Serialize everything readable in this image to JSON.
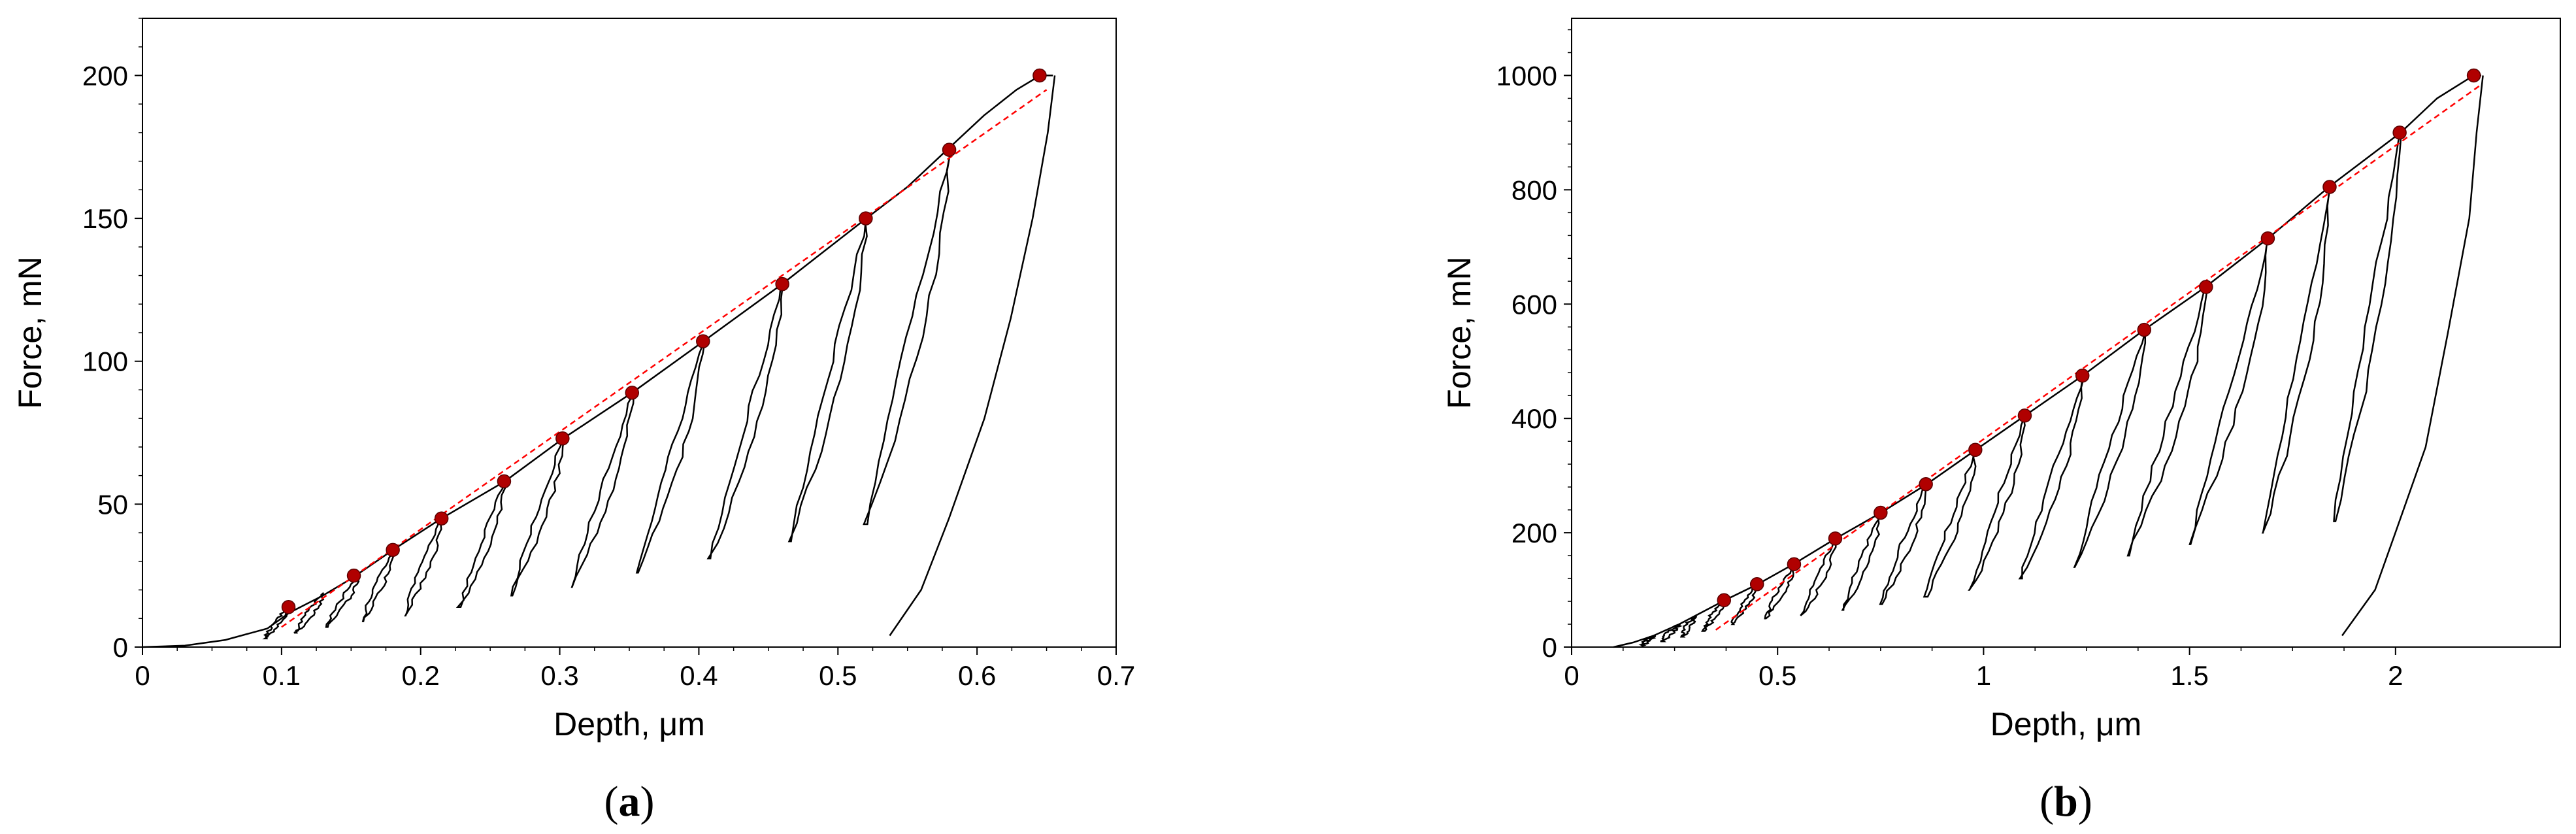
{
  "chart_data": [
    {
      "type": "line",
      "panel_label": "a",
      "xlabel": "Depth, μm",
      "ylabel": "Force, mN",
      "xlim": [
        0,
        0.7
      ],
      "ylim": [
        0,
        220
      ],
      "xticks": [
        0,
        0.1,
        0.2,
        0.3,
        0.4,
        0.5,
        0.6,
        0.7
      ],
      "xtick_labels": [
        "0",
        "0.1",
        "0.2",
        "0.3",
        "0.4",
        "0.5",
        "0.6",
        "0.7"
      ],
      "yticks": [
        0,
        50,
        100,
        150,
        200
      ],
      "ytick_labels": [
        "0",
        "50",
        "100",
        "150",
        "200"
      ],
      "grid": false,
      "colors": {
        "curve": "#000000",
        "points": "#b00000",
        "fit": "#ff0000"
      },
      "loading_curve": [
        [
          0.0,
          0
        ],
        [
          0.03,
          0.5
        ],
        [
          0.06,
          2.5
        ],
        [
          0.09,
          6.5
        ],
        [
          0.105,
          12
        ],
        [
          0.13,
          18
        ],
        [
          0.15,
          24
        ],
        [
          0.18,
          34
        ],
        [
          0.215,
          45
        ],
        [
          0.26,
          58
        ],
        [
          0.302,
          73
        ],
        [
          0.352,
          89
        ],
        [
          0.403,
          107
        ],
        [
          0.46,
          127
        ],
        [
          0.52,
          150
        ],
        [
          0.55,
          161
        ],
        [
          0.578,
          174
        ],
        [
          0.605,
          186
        ],
        [
          0.628,
          195
        ],
        [
          0.645,
          200
        ],
        [
          0.655,
          200
        ]
      ],
      "cycles": [
        {
          "peak": [
            0.105,
            14
          ],
          "unload_min": [
            0.088,
            3
          ]
        },
        {
          "peak": [
            0.13,
            19
          ],
          "unload_min": [
            0.11,
            5
          ]
        },
        {
          "peak": [
            0.155,
            25
          ],
          "unload_min": [
            0.132,
            7
          ]
        },
        {
          "peak": [
            0.18,
            34
          ],
          "unload_min": [
            0.158,
            9
          ]
        },
        {
          "peak": [
            0.215,
            45
          ],
          "unload_min": [
            0.188,
            11
          ]
        },
        {
          "peak": [
            0.26,
            58
          ],
          "unload_min": [
            0.228,
            14
          ]
        },
        {
          "peak": [
            0.302,
            73
          ],
          "unload_min": [
            0.265,
            18
          ]
        },
        {
          "peak": [
            0.352,
            89
          ],
          "unload_min": [
            0.308,
            21
          ]
        },
        {
          "peak": [
            0.403,
            107
          ],
          "unload_min": [
            0.355,
            26
          ]
        },
        {
          "peak": [
            0.46,
            127
          ],
          "unload_min": [
            0.408,
            31
          ]
        },
        {
          "peak": [
            0.52,
            150
          ],
          "unload_min": [
            0.465,
            37
          ]
        },
        {
          "peak": [
            0.58,
            174
          ],
          "unload_min": [
            0.52,
            43
          ]
        }
      ],
      "final_unload": [
        [
          0.655,
          200
        ],
        [
          0.65,
          180
        ],
        [
          0.64,
          150
        ],
        [
          0.625,
          115
        ],
        [
          0.605,
          80
        ],
        [
          0.58,
          45
        ],
        [
          0.56,
          20
        ],
        [
          0.537,
          4
        ]
      ],
      "red_points": [
        [
          0.105,
          14
        ],
        [
          0.152,
          25
        ],
        [
          0.18,
          34
        ],
        [
          0.215,
          45
        ],
        [
          0.26,
          58
        ],
        [
          0.302,
          73
        ],
        [
          0.352,
          89
        ],
        [
          0.403,
          107
        ],
        [
          0.46,
          127
        ],
        [
          0.52,
          150
        ],
        [
          0.58,
          174
        ],
        [
          0.645,
          200
        ]
      ],
      "fit_line": [
        [
          0.1,
          7
        ],
        [
          0.65,
          195
        ]
      ]
    },
    {
      "type": "line",
      "panel_label": "b",
      "xlabel": "Depth, μm",
      "ylabel": "Force, mN",
      "xlim": [
        0,
        2.4
      ],
      "ylim": [
        0,
        1100
      ],
      "xticks": [
        0,
        0.5,
        1,
        1.5,
        2
      ],
      "xtick_labels": [
        "0",
        "0.5",
        "1",
        "1.5",
        "2"
      ],
      "yticks": [
        0,
        200,
        400,
        600,
        800,
        1000
      ],
      "ytick_labels": [
        "0",
        "200",
        "400",
        "600",
        "800",
        "1000"
      ],
      "grid": false,
      "colors": {
        "curve": "#000000",
        "points": "#b00000",
        "fit": "#ff0000"
      },
      "loading_curve": [
        [
          0.1,
          0
        ],
        [
          0.15,
          8
        ],
        [
          0.2,
          20
        ],
        [
          0.26,
          40
        ],
        [
          0.37,
          82
        ],
        [
          0.45,
          110
        ],
        [
          0.54,
          145
        ],
        [
          0.64,
          190
        ],
        [
          0.75,
          235
        ],
        [
          0.86,
          285
        ],
        [
          0.98,
          345
        ],
        [
          1.1,
          405
        ],
        [
          1.24,
          475
        ],
        [
          1.39,
          555
        ],
        [
          1.54,
          630
        ],
        [
          1.69,
          715
        ],
        [
          1.84,
          805
        ],
        [
          2.01,
          900
        ],
        [
          2.1,
          960
        ],
        [
          2.19,
          1000
        ],
        [
          2.21,
          1000
        ]
      ],
      "cycles": [
        {
          "peak": [
            0.2,
            20
          ],
          "unload_min": [
            0.17,
            2
          ]
        },
        {
          "peak": [
            0.26,
            40
          ],
          "unload_min": [
            0.22,
            10
          ]
        },
        {
          "peak": [
            0.3,
            55
          ],
          "unload_min": [
            0.27,
            18
          ]
        },
        {
          "peak": [
            0.37,
            82
          ],
          "unload_min": [
            0.32,
            28
          ]
        },
        {
          "peak": [
            0.45,
            110
          ],
          "unload_min": [
            0.39,
            40
          ]
        },
        {
          "peak": [
            0.54,
            145
          ],
          "unload_min": [
            0.47,
            50
          ]
        },
        {
          "peak": [
            0.64,
            190
          ],
          "unload_min": [
            0.56,
            55
          ]
        },
        {
          "peak": [
            0.75,
            235
          ],
          "unload_min": [
            0.66,
            65
          ]
        },
        {
          "peak": [
            0.86,
            285
          ],
          "unload_min": [
            0.75,
            75
          ]
        },
        {
          "peak": [
            0.98,
            345
          ],
          "unload_min": [
            0.86,
            88
          ]
        },
        {
          "peak": [
            1.1,
            405
          ],
          "unload_min": [
            0.97,
            100
          ]
        },
        {
          "peak": [
            1.24,
            475
          ],
          "unload_min": [
            1.09,
            120
          ]
        },
        {
          "peak": [
            1.39,
            555
          ],
          "unload_min": [
            1.22,
            140
          ]
        },
        {
          "peak": [
            1.54,
            630
          ],
          "unload_min": [
            1.35,
            160
          ]
        },
        {
          "peak": [
            1.69,
            715
          ],
          "unload_min": [
            1.5,
            180
          ]
        },
        {
          "peak": [
            1.84,
            805
          ],
          "unload_min": [
            1.68,
            200
          ]
        },
        {
          "peak": [
            2.01,
            900
          ],
          "unload_min": [
            1.85,
            220
          ]
        }
      ],
      "final_unload": [
        [
          2.21,
          1000
        ],
        [
          2.2,
          900
        ],
        [
          2.18,
          750
        ],
        [
          2.13,
          550
        ],
        [
          2.07,
          350
        ],
        [
          2.0,
          200
        ],
        [
          1.95,
          100
        ],
        [
          1.87,
          20
        ]
      ],
      "red_points": [
        [
          0.37,
          82
        ],
        [
          0.45,
          110
        ],
        [
          0.54,
          145
        ],
        [
          0.64,
          190
        ],
        [
          0.75,
          235
        ],
        [
          0.86,
          285
        ],
        [
          0.98,
          345
        ],
        [
          1.1,
          405
        ],
        [
          1.24,
          475
        ],
        [
          1.39,
          555
        ],
        [
          1.54,
          630
        ],
        [
          1.69,
          715
        ],
        [
          1.84,
          805
        ],
        [
          2.01,
          900
        ],
        [
          2.19,
          1000
        ]
      ],
      "fit_line": [
        [
          0.35,
          30
        ],
        [
          2.21,
          985
        ]
      ]
    }
  ]
}
